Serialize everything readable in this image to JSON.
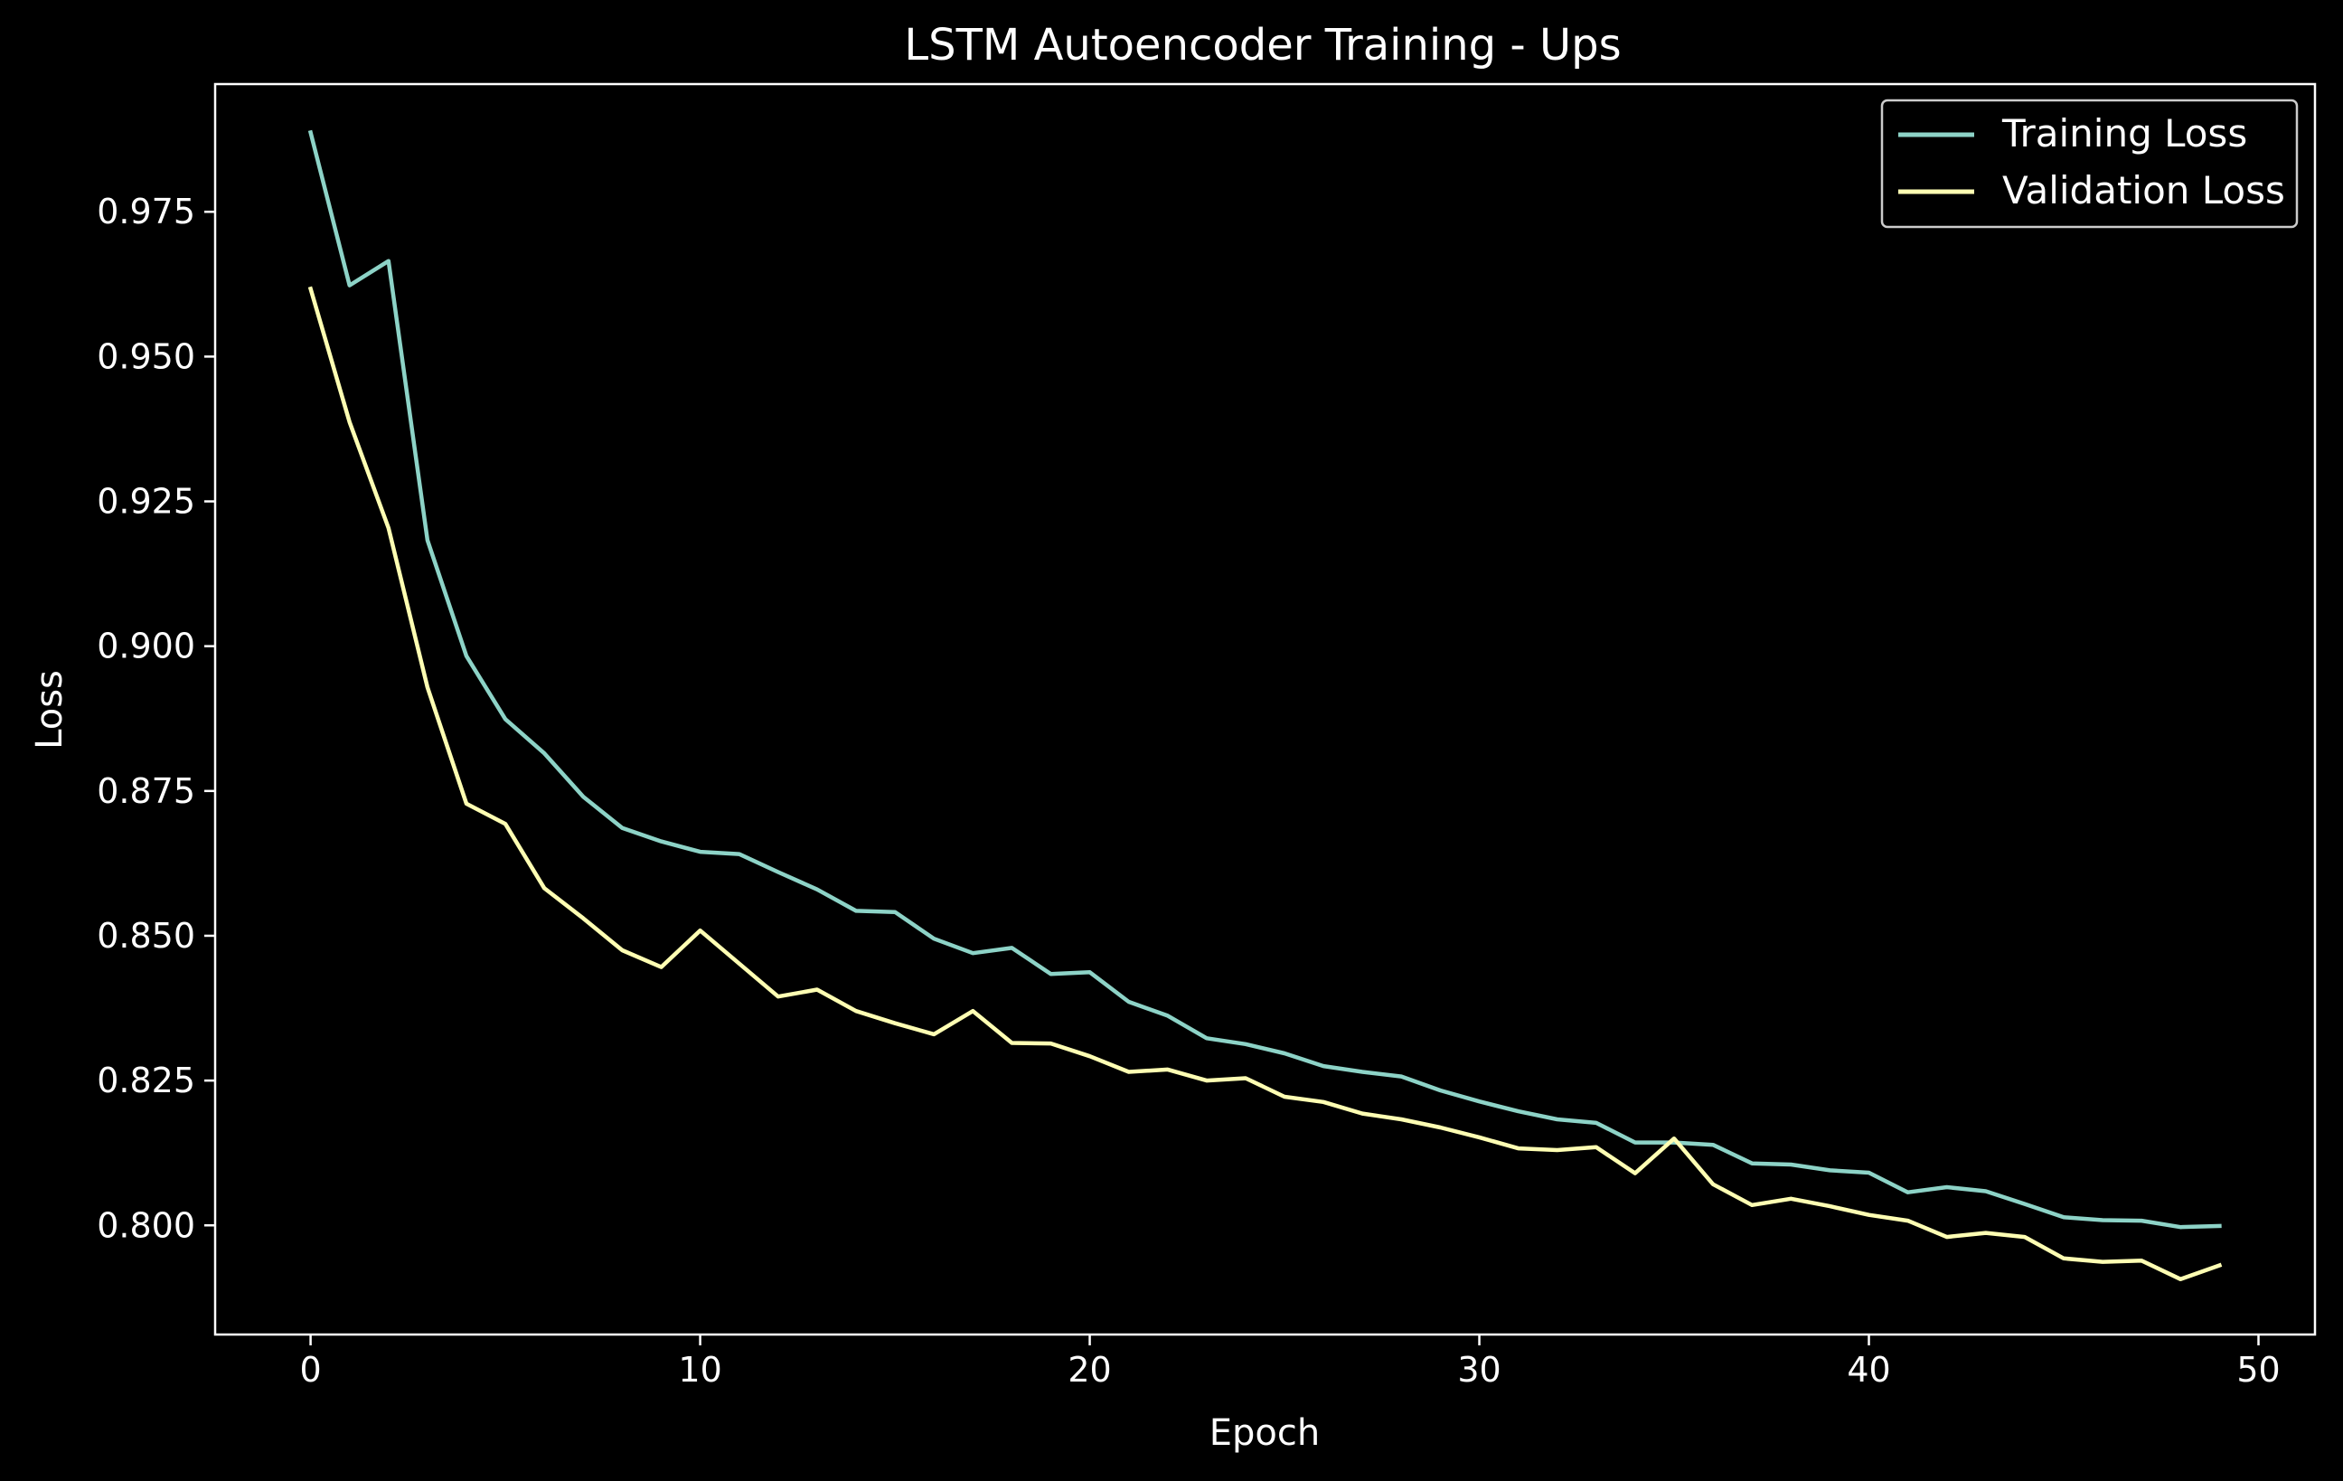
{
  "colors": {
    "background": "#000000",
    "axes": "#ffffff",
    "text": "#ffffff",
    "legend_border": "#cccccc"
  },
  "chart_data": {
    "type": "line",
    "title": "LSTM Autoencoder Training - Ups",
    "xlabel": "Epoch",
    "ylabel": "Loss",
    "xlim": [
      -2.45,
      51.45
    ],
    "ylim": [
      0.78115,
      0.99705
    ],
    "xticks": [
      0,
      10,
      20,
      30,
      40,
      50
    ],
    "xtick_labels": [
      "0",
      "10",
      "20",
      "30",
      "40",
      "50"
    ],
    "yticks": [
      0.8,
      0.825,
      0.85,
      0.875,
      0.9,
      0.925,
      0.95,
      0.975
    ],
    "ytick_labels": [
      "0.800",
      "0.825",
      "0.850",
      "0.875",
      "0.900",
      "0.925",
      "0.950",
      "0.975"
    ],
    "grid": false,
    "legend_position": "top-right",
    "x": [
      0,
      1,
      2,
      3,
      4,
      5,
      6,
      7,
      8,
      9,
      10,
      11,
      12,
      13,
      14,
      15,
      16,
      17,
      18,
      19,
      20,
      21,
      22,
      23,
      24,
      25,
      26,
      27,
      28,
      29,
      30,
      31,
      32,
      33,
      34,
      35,
      36,
      37,
      38,
      39,
      40,
      41,
      42,
      43,
      44,
      45,
      46,
      47,
      48,
      49
    ],
    "series": [
      {
        "name": "Training Loss",
        "color": "#8dd3c7",
        "values": [
          0.9887,
          0.9623,
          0.9665,
          0.9183,
          0.8983,
          0.8874,
          0.8815,
          0.874,
          0.8686,
          0.8663,
          0.8645,
          0.8641,
          0.861,
          0.858,
          0.8543,
          0.8541,
          0.8495,
          0.847,
          0.8479,
          0.8434,
          0.8437,
          0.8386,
          0.8362,
          0.8323,
          0.8313,
          0.8297,
          0.8275,
          0.8265,
          0.8257,
          0.8233,
          0.8214,
          0.8197,
          0.8183,
          0.8177,
          0.8143,
          0.8143,
          0.8139,
          0.8107,
          0.8105,
          0.8095,
          0.8091,
          0.8057,
          0.8066,
          0.8059,
          0.8037,
          0.8014,
          0.8009,
          0.8008,
          0.7997,
          0.7999
        ]
      },
      {
        "name": "Validation Loss",
        "color": "#ffffb3",
        "values": [
          0.9617,
          0.9387,
          0.9204,
          0.8929,
          0.8728,
          0.8693,
          0.8582,
          0.853,
          0.8475,
          0.8446,
          0.8509,
          0.8452,
          0.8395,
          0.8407,
          0.837,
          0.8349,
          0.833,
          0.837,
          0.8315,
          0.8314,
          0.8292,
          0.8265,
          0.8269,
          0.825,
          0.8254,
          0.8222,
          0.8213,
          0.8193,
          0.8183,
          0.8169,
          0.8152,
          0.8133,
          0.813,
          0.8135,
          0.809,
          0.815,
          0.8071,
          0.8035,
          0.8046,
          0.8033,
          0.8018,
          0.8008,
          0.798,
          0.7987,
          0.798,
          0.7943,
          0.7937,
          0.7939,
          0.7907,
          0.7931
        ]
      }
    ]
  }
}
